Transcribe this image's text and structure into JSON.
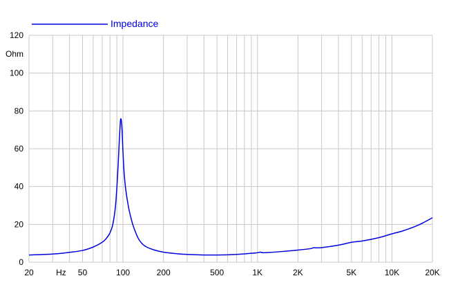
{
  "chart_data": {
    "type": "line",
    "title": "",
    "xlabel": "",
    "ylabel": "Ohm",
    "x_unit_label": "Hz",
    "x_scale": "log",
    "xlim": [
      20,
      20000
    ],
    "ylim": [
      0,
      120
    ],
    "grid": true,
    "legend_position": "top-left",
    "x_tick_labels": [
      {
        "value": 20,
        "label": "20"
      },
      {
        "value": 50,
        "label": "50"
      },
      {
        "value": 100,
        "label": "100"
      },
      {
        "value": 200,
        "label": "200"
      },
      {
        "value": 500,
        "label": "500"
      },
      {
        "value": 1000,
        "label": "1K"
      },
      {
        "value": 2000,
        "label": "2K"
      },
      {
        "value": 5000,
        "label": "5K"
      },
      {
        "value": 10000,
        "label": "10K"
      },
      {
        "value": 20000,
        "label": "20K"
      }
    ],
    "x_gridlines": [
      20,
      30,
      40,
      50,
      60,
      70,
      80,
      90,
      100,
      200,
      300,
      400,
      500,
      600,
      700,
      800,
      900,
      1000,
      2000,
      3000,
      4000,
      5000,
      6000,
      7000,
      8000,
      9000,
      10000,
      20000
    ],
    "y_ticks": [
      0,
      20,
      40,
      60,
      80,
      100,
      120
    ],
    "series": [
      {
        "name": "Impedance",
        "color": "#0000dd",
        "x": [
          20,
          30,
          40,
          50,
          60,
          70,
          75,
          80,
          84,
          88,
          91,
          94,
          96,
          98,
          100,
          102,
          105,
          110,
          115,
          120,
          130,
          140,
          150,
          170,
          200,
          250,
          300,
          400,
          500,
          600,
          700,
          800,
          900,
          1000,
          1050,
          1100,
          1200,
          1500,
          2000,
          2500,
          2600,
          3000,
          4000,
          5000,
          6000,
          8000,
          10000,
          12000,
          15000,
          17000,
          20000
        ],
        "y": [
          3.8,
          4.3,
          5.2,
          6.2,
          8.0,
          10.5,
          12.5,
          15.5,
          20.0,
          30.0,
          45.0,
          65.0,
          75.5,
          72.0,
          58.0,
          47.0,
          38.0,
          29.0,
          23.0,
          18.5,
          12.5,
          9.5,
          8.0,
          6.5,
          5.3,
          4.5,
          4.1,
          3.8,
          3.8,
          3.9,
          4.1,
          4.4,
          4.7,
          5.0,
          5.3,
          5.0,
          5.1,
          5.6,
          6.4,
          7.2,
          7.6,
          7.7,
          9.0,
          10.5,
          11.2,
          13.0,
          15.0,
          16.5,
          19.0,
          20.8,
          23.5
        ]
      }
    ]
  }
}
